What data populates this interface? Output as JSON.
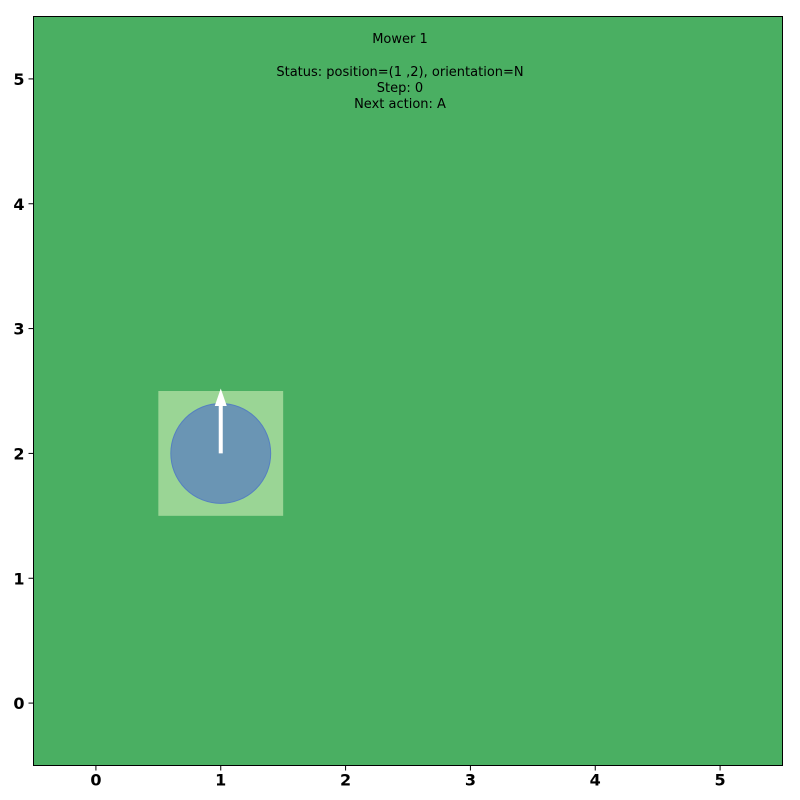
{
  "title": "Mower 1",
  "status_line": "Status: position=(1 ,2), orientation=N",
  "step_line": "Step: 0",
  "next_action_line": "Next action: A",
  "grid": {
    "x_ticks": [
      "0",
      "1",
      "2",
      "3",
      "4",
      "5"
    ],
    "y_ticks": [
      "0",
      "1",
      "2",
      "3",
      "4",
      "5"
    ],
    "xlim": [
      -0.5,
      5.5
    ],
    "ylim": [
      -0.5,
      5.5
    ]
  },
  "mower": {
    "position": [
      1,
      2
    ],
    "orientation": "N",
    "step": 0,
    "next_action": "A"
  },
  "colors": {
    "lawn": "#4aaf62",
    "cell_highlight": "#9ad595",
    "mower_body": "#6a95b4",
    "mower_border": "#5580c0",
    "arrow": "#ffffff",
    "frame": "#000000"
  }
}
